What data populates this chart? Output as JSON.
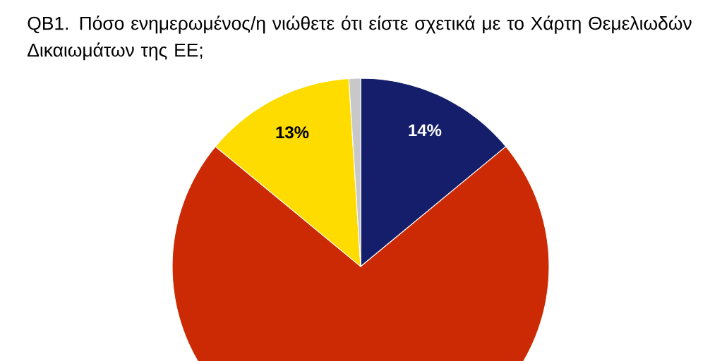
{
  "chart_data": {
    "type": "pie",
    "title": "QB1. Πόσο ενημερωμένος/η νιώθετε ότι είστε σχετικά με το Χάρτη Θεμελιωδών Δικαιωμάτων της ΕΕ;",
    "categories": [
      null,
      null,
      null,
      null
    ],
    "values": [
      14,
      72,
      13,
      1
    ],
    "colors": [
      "#141e6b",
      "#cc2a04",
      "#ffdc00",
      "#c8c8c8"
    ],
    "value_labels": [
      "14%",
      null,
      "13%",
      null
    ]
  }
}
